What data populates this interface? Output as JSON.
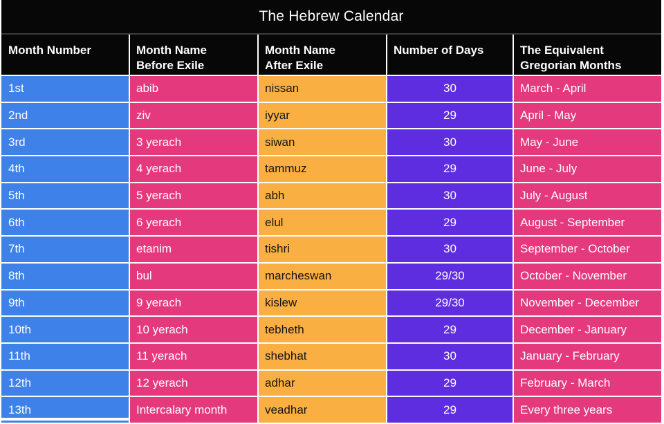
{
  "title": "The Hebrew Calendar",
  "colors": {
    "header_black": "#070707",
    "month_number_blue": "#3e82e9",
    "pink": "#e5397e",
    "orange": "#faaf42",
    "purple": "#5f2de0",
    "header_separator_gray": "#3c3c3e",
    "row_gap_white": "#ffffff"
  },
  "chart_data": {
    "type": "table",
    "title": "The Hebrew Calendar",
    "columns": [
      "Month Number",
      "Month Name\nBefore Exile",
      "Month Name\nAfter Exile",
      "Number of Days",
      "The Equivalent\nGregorian Months"
    ],
    "rows": [
      {
        "number": "1st",
        "before": "abib",
        "after": "nissan",
        "days": "30",
        "gregorian": "March - April"
      },
      {
        "number": "2nd",
        "before": "ziv",
        "after": "iyyar",
        "days": "29",
        "gregorian": "April - May"
      },
      {
        "number": "3rd",
        "before": "3 yerach",
        "after": "siwan",
        "days": "30",
        "gregorian": "May - June"
      },
      {
        "number": "4th",
        "before": "4 yerach",
        "after": "tammuz",
        "days": "29",
        "gregorian": "June - July"
      },
      {
        "number": "5th",
        "before": "5 yerach",
        "after": "abh",
        "days": "30",
        "gregorian": "July - August"
      },
      {
        "number": "6th",
        "before": "6 yerach",
        "after": "elul",
        "days": "29",
        "gregorian": "August - September"
      },
      {
        "number": "7th",
        "before": "etanim",
        "after": "tishri",
        "days": "30",
        "gregorian": "September - October"
      },
      {
        "number": "8th",
        "before": "bul",
        "after": "marcheswan",
        "days": "29/30",
        "gregorian": "October - November"
      },
      {
        "number": "9th",
        "before": "9 yerach",
        "after": "kislew",
        "days": "29/30",
        "gregorian": "November - December"
      },
      {
        "number": "10th",
        "before": "10 yerach",
        "after": "tebheth",
        "days": "29",
        "gregorian": "December - January"
      },
      {
        "number": "11th",
        "before": "11 yerach",
        "after": "shebhat",
        "days": "30",
        "gregorian": "January - February"
      },
      {
        "number": "12th",
        "before": "12 yerach",
        "after": "adhar",
        "days": "29",
        "gregorian": "February - March"
      },
      {
        "number": "13th",
        "before": "Intercalary month",
        "after": "veadhar",
        "days": "29",
        "gregorian": "Every three years"
      }
    ]
  }
}
